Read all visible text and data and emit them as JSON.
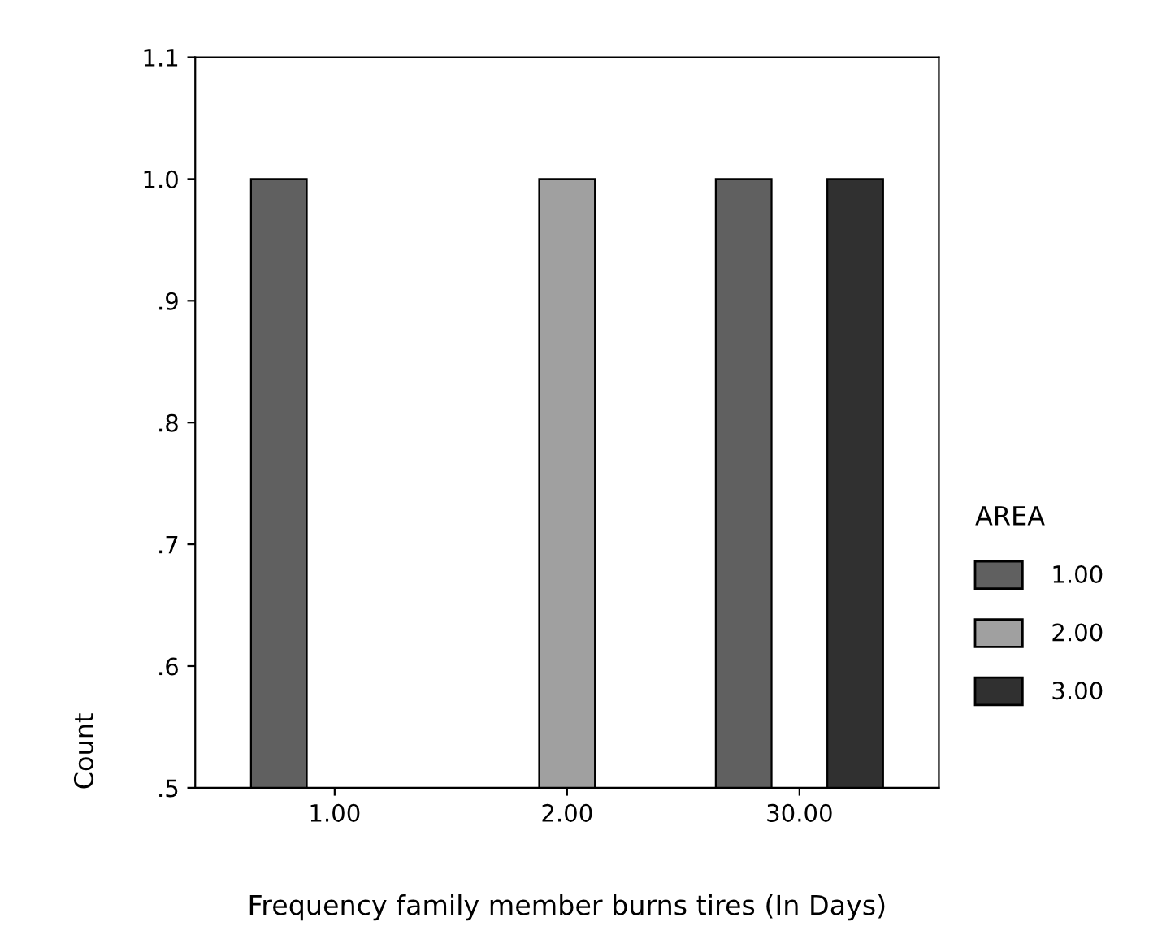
{
  "chart_data": {
    "type": "bar",
    "xlabel": "Frequency family member burns tires (In Days)",
    "ylabel": "Count",
    "legend_title": "AREA",
    "categories": [
      "1.00",
      "2.00",
      "30.00"
    ],
    "series": [
      {
        "name": "1.00",
        "color": "#606060",
        "values": [
          1.0,
          null,
          1.0
        ]
      },
      {
        "name": "2.00",
        "color": "#a0a0a0",
        "values": [
          null,
          1.0,
          null
        ]
      },
      {
        "name": "3.00",
        "color": "#303030",
        "values": [
          null,
          null,
          1.0
        ]
      }
    ],
    "ylim": [
      0.5,
      1.1
    ],
    "yticks": [
      1.1,
      {
        "value": 1.0,
        "label": "1.0"
      },
      {
        "value": 0.9,
        "label": ".9"
      },
      {
        "value": 0.8,
        "label": ".8"
      },
      {
        "value": 0.7,
        "label": ".7"
      },
      {
        "value": 0.6,
        "label": ".6"
      },
      {
        "value": 0.5,
        "label": ".5"
      }
    ],
    "grid": false,
    "legend": "right"
  }
}
